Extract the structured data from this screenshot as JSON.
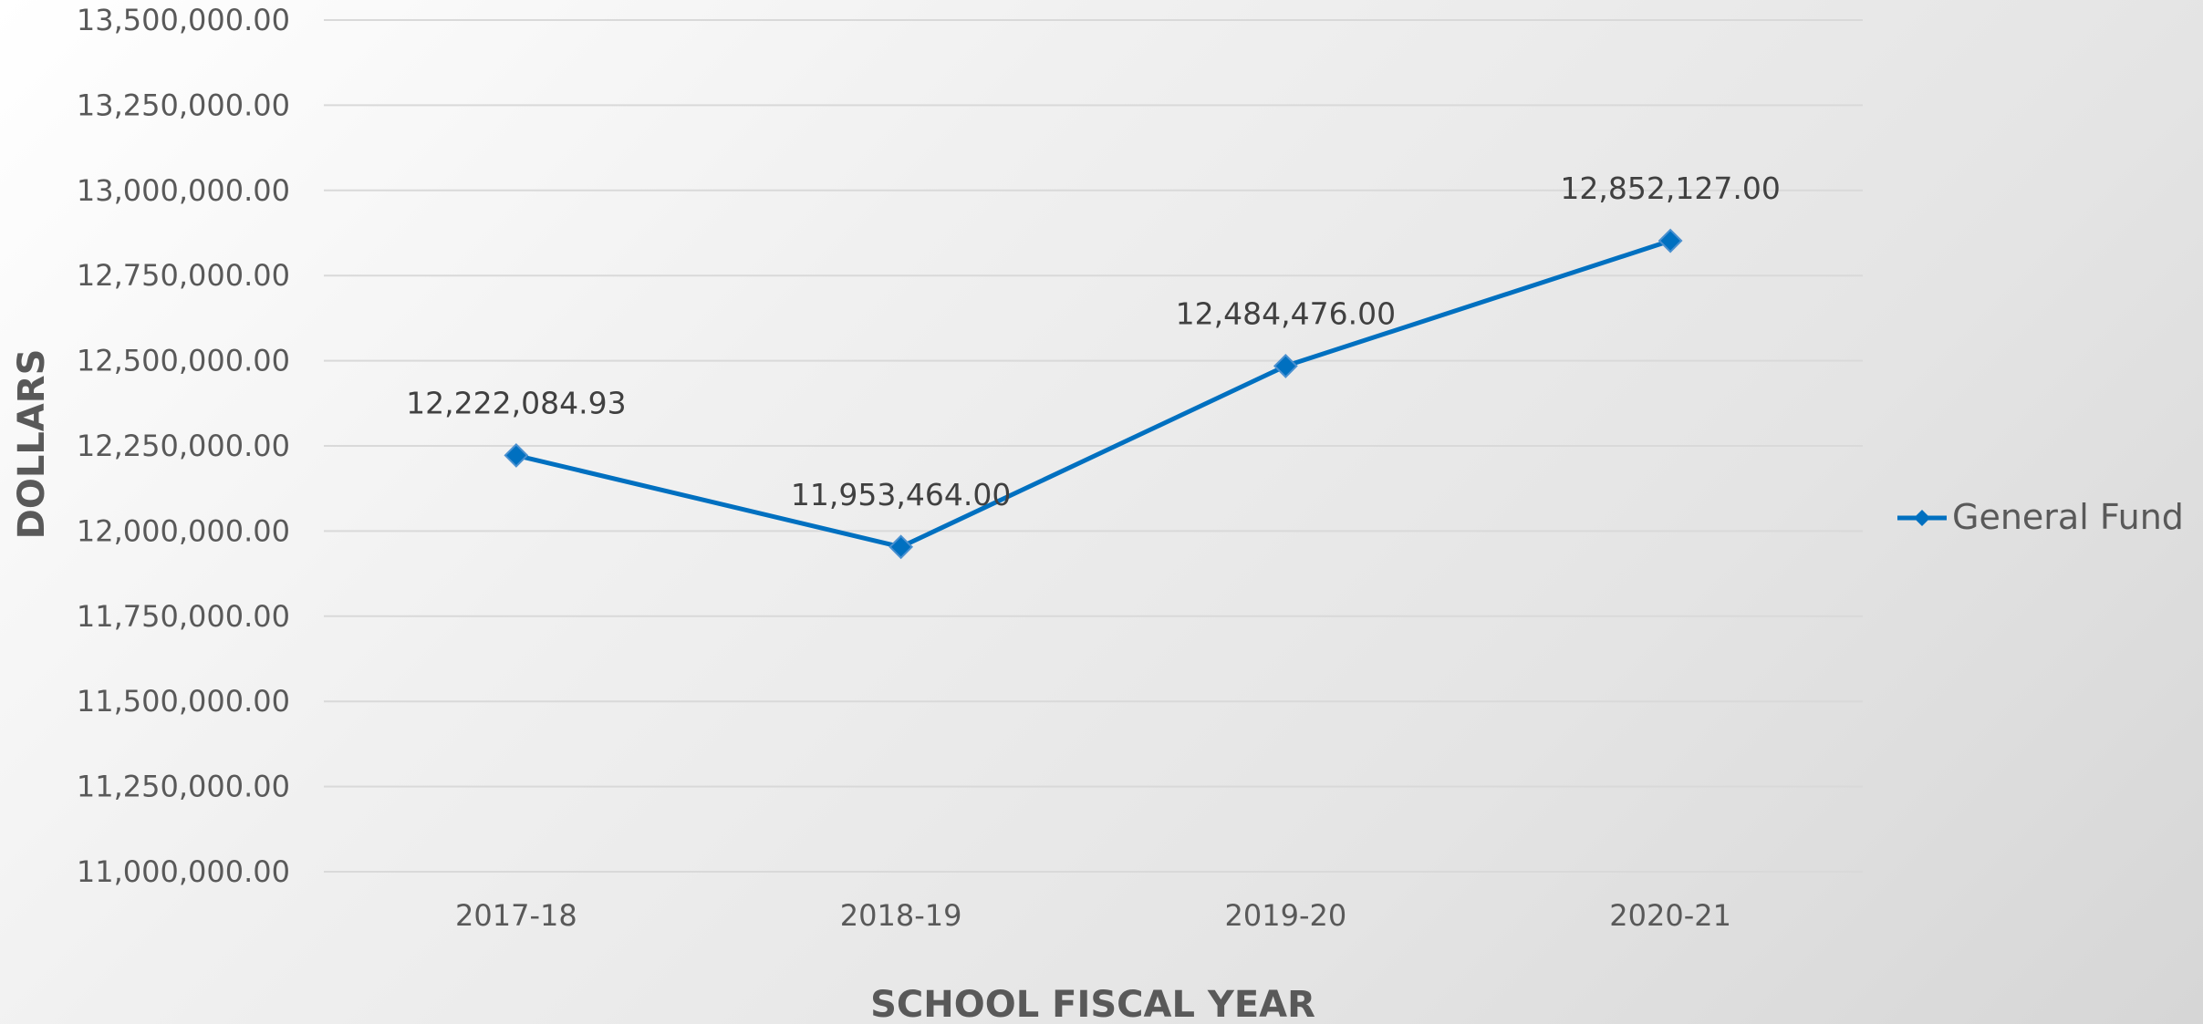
{
  "chart_data": {
    "type": "line",
    "title": "",
    "xlabel": "SCHOOL FISCAL YEAR",
    "ylabel": "DOLLARS",
    "categories": [
      "2017-18",
      "2018-19",
      "2019-20",
      "2020-21"
    ],
    "series": [
      {
        "name": "General Fund",
        "values": [
          12222084.93,
          11953464.0,
          12484476.0,
          12852127.0
        ],
        "data_labels": [
          "12,222,084.93",
          "11,953,464.00",
          "12,484,476.00",
          "12,852,127.00"
        ],
        "color": "#0070C0",
        "marker": "diamond"
      }
    ],
    "ylim": [
      11000000,
      13500000
    ],
    "yticks": [
      11000000,
      11250000,
      11500000,
      11750000,
      12000000,
      12250000,
      12500000,
      12750000,
      13000000,
      13250000,
      13500000
    ],
    "ytick_labels": [
      "11,000,000.00",
      "11,250,000.00",
      "11,500,000.00",
      "11,750,000.00",
      "12,000,000.00",
      "12,250,000.00",
      "12,500,000.00",
      "12,750,000.00",
      "13,000,000.00",
      "13,250,000.00",
      "13,500,000.00"
    ],
    "grid": true,
    "legend_position": "right"
  }
}
